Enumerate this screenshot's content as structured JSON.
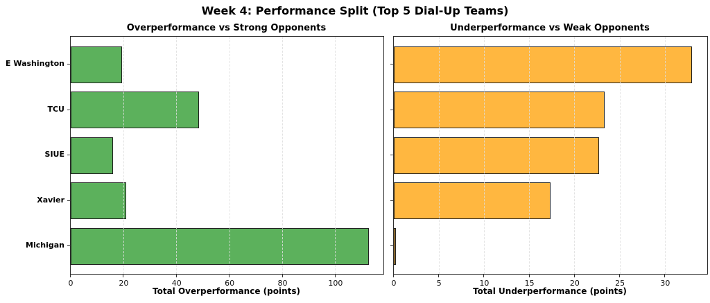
{
  "chart_data": {
    "type": "bar",
    "orientation": "horizontal",
    "suptitle": "Week 4: Performance Split (Top 5 Dial-Up Teams)",
    "categories": [
      "E Washington",
      "TCU",
      "SIUE",
      "Xavier",
      "Michigan"
    ],
    "subplots": [
      {
        "title": "Overperformance vs Strong Opponents",
        "xlabel": "Total Overperformance (points)",
        "values": [
          19.5,
          48.5,
          16,
          21,
          112.5
        ],
        "xticks": [
          0,
          20,
          40,
          60,
          80,
          100
        ],
        "xlim": [
          0,
          118.1
        ],
        "bar_color": "#5CB15C"
      },
      {
        "title": "Underperformance vs Weak Opponents",
        "xlabel": "Total Underperformance (points)",
        "values": [
          33,
          23.3,
          22.7,
          17.3,
          0.2
        ],
        "xticks": [
          0,
          5,
          10,
          15,
          20,
          25,
          30
        ],
        "xlim": [
          0,
          34.65
        ],
        "bar_color": "#FFB740"
      }
    ],
    "styles": {
      "bar_edge_color": "#222222",
      "spine_color": "#2e2e2e",
      "grid": "x-dashed",
      "background": "#ffffff",
      "legend": "none"
    }
  }
}
